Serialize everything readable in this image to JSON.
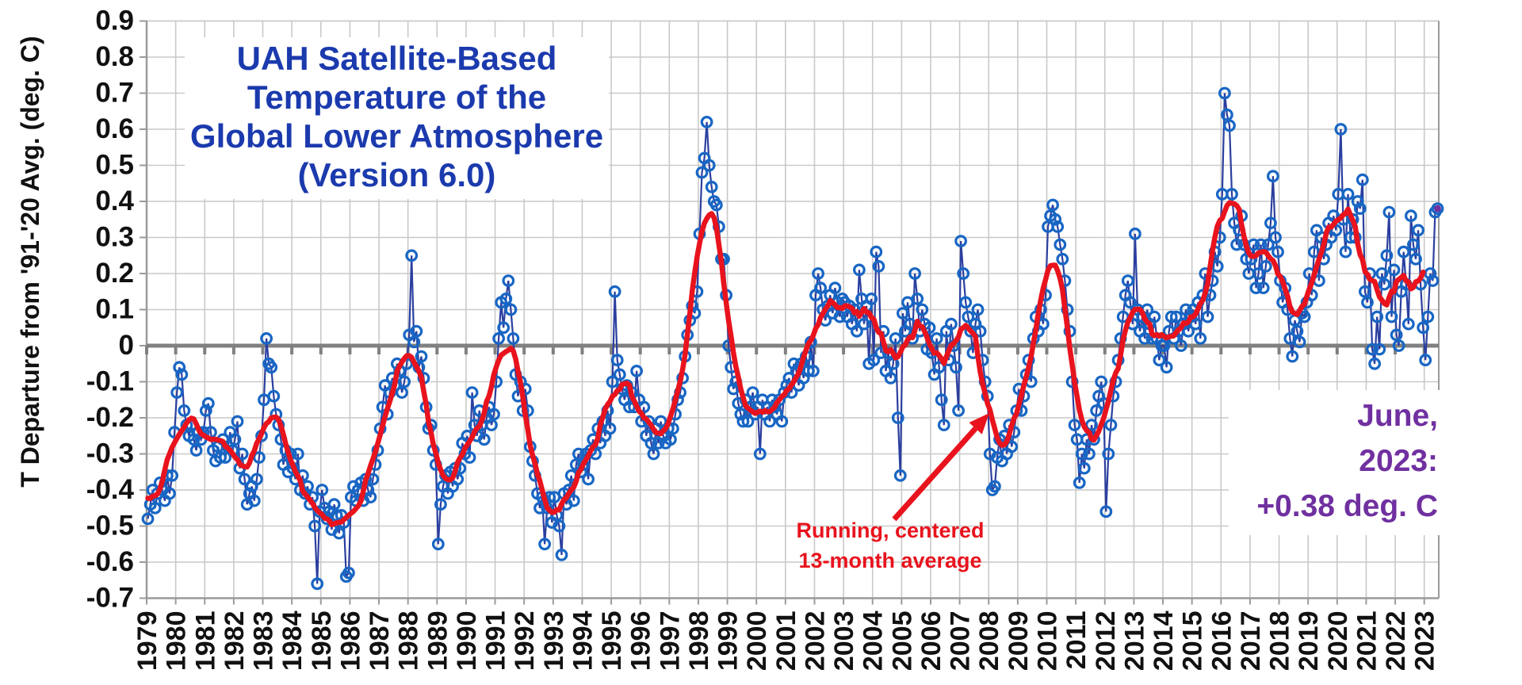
{
  "chart_data": {
    "type": "line",
    "title_lines": [
      "UAH Satellite-Based",
      "Temperature of the",
      "Global Lower Atmosphere",
      "(Version 6.0)"
    ],
    "y_axis": {
      "label": "T Departure from '91-'20 Avg. (deg. C)",
      "min": -0.7,
      "max": 0.9,
      "tick_step": 0.1,
      "tick_labels": [
        "0.9",
        "0.8",
        "0.7",
        "0.6",
        "0.5",
        "0.4",
        "0.3",
        "0.2",
        "0.1",
        "0",
        "-0.1",
        "-0.2",
        "-0.3",
        "-0.4",
        "-0.5",
        "-0.6",
        "-0.7"
      ],
      "grid": true
    },
    "x_axis": {
      "years": [
        "1979",
        "1980",
        "1981",
        "1982",
        "1983",
        "1984",
        "1985",
        "1986",
        "1987",
        "1988",
        "1989",
        "1990",
        "1991",
        "1992",
        "1993",
        "1994",
        "1995",
        "1996",
        "1997",
        "1998",
        "1999",
        "2000",
        "2001",
        "2002",
        "2003",
        "2004",
        "2005",
        "2006",
        "2007",
        "2008",
        "2009",
        "2010",
        "2011",
        "2012",
        "2013",
        "2014",
        "2015",
        "2016",
        "2017",
        "2018",
        "2019",
        "2020",
        "2021",
        "2022",
        "2023"
      ],
      "grid": true
    },
    "series": [
      {
        "name": "monthly-anomaly",
        "start": "1979-01",
        "end": "2023-06",
        "marker": "open-circle",
        "values": [
          -0.48,
          -0.44,
          -0.4,
          -0.45,
          -0.41,
          -0.38,
          -0.4,
          -0.43,
          -0.36,
          -0.41,
          -0.36,
          -0.24,
          -0.13,
          -0.06,
          -0.08,
          -0.18,
          -0.22,
          -0.25,
          -0.22,
          -0.26,
          -0.29,
          -0.24,
          -0.26,
          -0.24,
          -0.18,
          -0.16,
          -0.24,
          -0.29,
          -0.32,
          -0.28,
          -0.31,
          -0.26,
          -0.31,
          -0.28,
          -0.24,
          -0.29,
          -0.26,
          -0.21,
          -0.34,
          -0.3,
          -0.37,
          -0.44,
          -0.41,
          -0.39,
          -0.43,
          -0.37,
          -0.31,
          -0.25,
          -0.15,
          0.02,
          -0.05,
          -0.06,
          -0.14,
          -0.19,
          -0.22,
          -0.26,
          -0.33,
          -0.29,
          -0.35,
          -0.3,
          -0.34,
          -0.37,
          -0.3,
          -0.4,
          -0.36,
          -0.41,
          -0.39,
          -0.44,
          -0.42,
          -0.5,
          -0.66,
          -0.46,
          -0.4,
          -0.45,
          -0.48,
          -0.46,
          -0.51,
          -0.44,
          -0.47,
          -0.52,
          -0.47,
          -0.49,
          -0.64,
          -0.63,
          -0.42,
          -0.39,
          -0.43,
          -0.4,
          -0.38,
          -0.43,
          -0.37,
          -0.4,
          -0.42,
          -0.37,
          -0.33,
          -0.29,
          -0.23,
          -0.17,
          -0.11,
          -0.19,
          -0.13,
          -0.09,
          -0.11,
          -0.05,
          -0.07,
          -0.13,
          -0.1,
          -0.05,
          0.03,
          0.25,
          0.01,
          0.04,
          -0.06,
          -0.03,
          -0.09,
          -0.17,
          -0.23,
          -0.22,
          -0.29,
          -0.33,
          -0.55,
          -0.44,
          -0.39,
          -0.36,
          -0.41,
          -0.35,
          -0.39,
          -0.34,
          -0.37,
          -0.34,
          -0.27,
          -0.3,
          -0.25,
          -0.31,
          -0.13,
          -0.22,
          -0.25,
          -0.18,
          -0.22,
          -0.26,
          -0.2,
          -0.17,
          -0.22,
          -0.19,
          -0.1,
          0.02,
          0.12,
          0.05,
          0.13,
          0.18,
          0.1,
          0.02,
          -0.08,
          -0.14,
          -0.1,
          -0.18,
          -0.12,
          -0.18,
          -0.28,
          -0.32,
          -0.36,
          -0.41,
          -0.45,
          -0.42,
          -0.55,
          -0.45,
          -0.42,
          -0.49,
          -0.42,
          -0.47,
          -0.5,
          -0.58,
          -0.41,
          -0.44,
          -0.4,
          -0.36,
          -0.43,
          -0.33,
          -0.3,
          -0.35,
          -0.33,
          -0.3,
          -0.37,
          -0.29,
          -0.26,
          -0.3,
          -0.23,
          -0.27,
          -0.21,
          -0.25,
          -0.18,
          -0.23,
          -0.1,
          0.15,
          -0.04,
          -0.08,
          -0.12,
          -0.15,
          -0.11,
          -0.17,
          -0.13,
          -0.17,
          -0.07,
          -0.15,
          -0.21,
          -0.17,
          -0.25,
          -0.21,
          -0.27,
          -0.3,
          -0.23,
          -0.27,
          -0.21,
          -0.25,
          -0.27,
          -0.23,
          -0.26,
          -0.23,
          -0.19,
          -0.15,
          -0.13,
          -0.09,
          -0.03,
          0.03,
          0.07,
          0.11,
          0.09,
          0.15,
          0.31,
          0.48,
          0.52,
          0.62,
          0.5,
          0.44,
          0.4,
          0.39,
          0.33,
          0.24,
          0.24,
          0.14,
          0.0,
          -0.06,
          -0.12,
          -0.1,
          -0.16,
          -0.19,
          -0.21,
          -0.15,
          -0.21,
          -0.17,
          -0.13,
          -0.19,
          -0.17,
          -0.3,
          -0.15,
          -0.19,
          -0.17,
          -0.21,
          -0.15,
          -0.17,
          -0.19,
          -0.15,
          -0.21,
          -0.13,
          -0.11,
          -0.09,
          -0.13,
          -0.05,
          -0.07,
          -0.11,
          -0.05,
          -0.09,
          -0.03,
          -0.07,
          0.01,
          -0.07,
          0.14,
          0.2,
          0.16,
          0.1,
          0.07,
          0.11,
          0.14,
          0.09,
          0.16,
          0.12,
          0.08,
          0.13,
          0.12,
          0.08,
          0.11,
          0.06,
          0.1,
          0.04,
          0.21,
          0.13,
          0.06,
          0.11,
          -0.05,
          0.13,
          -0.04,
          0.26,
          0.22,
          -0.02,
          0.04,
          -0.07,
          -0.02,
          -0.09,
          -0.05,
          0.02,
          -0.2,
          -0.36,
          0.09,
          0.04,
          0.12,
          0.06,
          0.02,
          0.2,
          0.13,
          0.04,
          0.1,
          0.06,
          -0.01,
          0.05,
          -0.02,
          -0.08,
          0.02,
          -0.06,
          -0.15,
          -0.22,
          0.04,
          -0.04,
          0.06,
          0.0,
          -0.06,
          -0.18,
          0.29,
          0.2,
          0.12,
          0.08,
          0.04,
          -0.02,
          0.06,
          0.1,
          0.04,
          -0.04,
          -0.1,
          -0.14,
          -0.3,
          -0.4,
          -0.39,
          -0.31,
          -0.26,
          -0.32,
          -0.25,
          -0.3,
          -0.22,
          -0.28,
          -0.24,
          -0.18,
          -0.12,
          -0.18,
          -0.14,
          -0.08,
          -0.04,
          -0.1,
          0.02,
          0.08,
          0.04,
          0.1,
          0.06,
          0.14,
          0.33,
          0.36,
          0.39,
          0.35,
          0.33,
          0.28,
          0.24,
          0.18,
          0.1,
          0.04,
          -0.1,
          -0.22,
          -0.26,
          -0.38,
          -0.3,
          -0.34,
          -0.26,
          -0.3,
          -0.22,
          -0.26,
          -0.18,
          -0.14,
          -0.1,
          -0.16,
          -0.46,
          -0.3,
          -0.22,
          -0.14,
          -0.1,
          -0.04,
          0.02,
          0.08,
          0.14,
          0.18,
          0.12,
          0.06,
          0.31,
          0.1,
          0.04,
          0.08,
          0.02,
          0.1,
          0.06,
          0.02,
          0.08,
          0.02,
          -0.04,
          0.0,
          0.0,
          -0.06,
          0.04,
          0.08,
          0.02,
          0.08,
          0.04,
          0.0,
          0.06,
          0.1,
          0.04,
          0.08,
          0.1,
          0.06,
          0.12,
          0.02,
          0.14,
          0.2,
          0.08,
          0.14,
          0.18,
          0.26,
          0.22,
          0.3,
          0.42,
          0.7,
          0.64,
          0.61,
          0.42,
          0.34,
          0.28,
          0.32,
          0.36,
          0.28,
          0.24,
          0.2,
          0.24,
          0.28,
          0.16,
          0.2,
          0.28,
          0.16,
          0.22,
          0.28,
          0.34,
          0.47,
          0.3,
          0.26,
          0.18,
          0.12,
          0.16,
          0.1,
          0.02,
          -0.03,
          0.07,
          0.04,
          0.01,
          0.09,
          0.08,
          0.12,
          0.2,
          0.14,
          0.26,
          0.32,
          0.18,
          0.3,
          0.24,
          0.28,
          0.34,
          0.3,
          0.36,
          0.32,
          0.42,
          0.6,
          0.35,
          0.26,
          0.42,
          0.3,
          0.35,
          0.3,
          0.4,
          0.38,
          0.46,
          0.15,
          0.12,
          0.2,
          -0.01,
          -0.05,
          0.08,
          -0.01,
          0.2,
          0.17,
          0.25,
          0.37,
          0.08,
          0.21,
          0.03,
          0.0,
          0.15,
          0.26,
          0.17,
          0.06,
          0.36,
          0.28,
          0.24,
          0.32,
          0.17,
          0.05,
          -0.04,
          0.08,
          0.2,
          0.18,
          0.37,
          0.38
        ]
      },
      {
        "name": "running-centered-13-month-average",
        "derived_from": "monthly-anomaly",
        "method": "centered 13-month running mean"
      }
    ],
    "annotations": {
      "smoother": {
        "lines": [
          "Running, centered",
          "13-month average"
        ],
        "arrow_from_xy": [
          1128,
          655
        ],
        "arrow_to_xy": [
          1248,
          521
        ]
      },
      "latest": {
        "lines": [
          "June,",
          "2023:",
          "+0.38 deg. C"
        ],
        "month": "June 2023",
        "value": 0.38
      }
    },
    "colors": {
      "title_blue": "#1b3aad",
      "series_line_blue": "#2b3f9f",
      "marker_blue": "#1866c4",
      "average_red": "#e8131d",
      "latest_purple": "#7030a0",
      "zero_line_gray": "#808080",
      "axis_gray": "#9a9a9a",
      "gridline_gray": "#c9c9c9",
      "axis_text": "#111111"
    },
    "legend": "none"
  }
}
